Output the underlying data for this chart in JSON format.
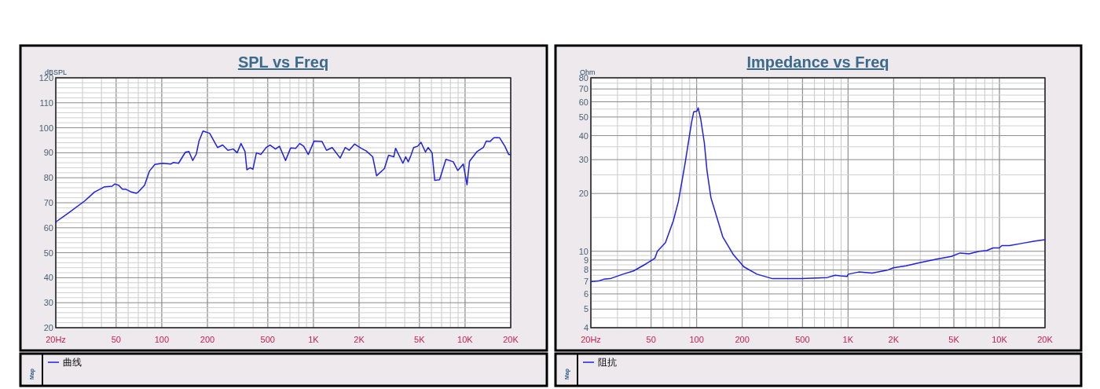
{
  "chart_data": [
    {
      "type": "line",
      "title": "SPL vs Freq",
      "ylabel": "dBSPL",
      "log": "x",
      "grid": true,
      "legend": "bottom",
      "annotations": [
        "Map"
      ],
      "xlim": [
        20,
        20000
      ],
      "ylim": [
        20,
        120
      ],
      "xticks": [
        {
          "value": 20,
          "label": "20Hz"
        },
        50,
        100,
        200,
        500,
        {
          "value": 1000,
          "label": "1K"
        },
        {
          "value": 2000,
          "label": "2K"
        },
        {
          "value": 5000,
          "label": "5K"
        },
        {
          "value": 10000,
          "label": "10K"
        },
        {
          "value": 20000,
          "label": "20K"
        }
      ],
      "yticks": [
        20,
        30,
        40,
        50,
        60,
        70,
        80,
        90,
        100,
        110,
        120
      ],
      "x": [
        20,
        24,
        31,
        36,
        42,
        47,
        49,
        52,
        55,
        58,
        63,
        68,
        70,
        77,
        83,
        90,
        101,
        115,
        119,
        129,
        143,
        151,
        160,
        169,
        176,
        187,
        207,
        233,
        252,
        273,
        296,
        314,
        333,
        354,
        364,
        383,
        399,
        421,
        450,
        488,
        518,
        562,
        597,
        655,
        707,
        764,
        812,
        863,
        925,
        1010,
        1140,
        1220,
        1330,
        1500,
        1620,
        1720,
        1870,
        2060,
        2230,
        2460,
        2610,
        2940,
        3130,
        3390,
        3480,
        3890,
        4060,
        4220,
        4400,
        4580,
        4860,
        5120,
        5480,
        5710,
        6060,
        6310,
        6790,
        7480,
        8360,
        8950,
        9730,
        10300,
        10700,
        12000,
        13200,
        13800,
        14600,
        15500,
        16900,
        18300,
        19400,
        20000
      ],
      "series": [
        {
          "name": "曲线",
          "color": "#1f1fe6",
          "values": [
            62.3,
            65.7,
            70.7,
            74.3,
            76.4,
            76.6,
            77.5,
            77,
            75.4,
            75.4,
            74.3,
            73.8,
            74.3,
            77,
            82.7,
            85.3,
            85.8,
            85.5,
            86.1,
            85.8,
            90.2,
            90.5,
            86.9,
            89.5,
            94.7,
            98.7,
            97.8,
            92.1,
            93.1,
            91,
            91.5,
            90,
            93.7,
            90.5,
            83.2,
            84,
            83.4,
            90,
            89.3,
            92.1,
            93.1,
            91.5,
            92.6,
            86.9,
            91.9,
            91.8,
            93.7,
            92.6,
            89.3,
            94.7,
            94.5,
            91,
            92.1,
            87.9,
            92.1,
            91,
            93.5,
            91.8,
            90.7,
            88.4,
            80.8,
            83.7,
            89,
            88.4,
            91.8,
            85.8,
            88.4,
            86.4,
            89,
            92.1,
            92.6,
            94.2,
            90.3,
            92.1,
            90,
            79,
            79.2,
            87.4,
            86.4,
            82.9,
            85.5,
            77.2,
            86.6,
            90.5,
            92.1,
            94.7,
            94.5,
            96,
            96,
            92.6,
            89.3,
            89.3
          ]
        }
      ]
    },
    {
      "type": "line",
      "title": "Impedance vs Freq",
      "ylabel": "Ohm",
      "log": "xy",
      "grid": true,
      "legend": "bottom",
      "annotations": [
        "Map"
      ],
      "xlim": [
        20,
        20000
      ],
      "ylim": [
        4,
        80
      ],
      "xticks": [
        {
          "value": 20,
          "label": "20Hz"
        },
        50,
        100,
        200,
        500,
        {
          "value": 1000,
          "label": "1K"
        },
        {
          "value": 2000,
          "label": "2K"
        },
        {
          "value": 5000,
          "label": "5K"
        },
        {
          "value": 10000,
          "label": "10K"
        },
        {
          "value": 20000,
          "label": "20K"
        }
      ],
      "yticks": [
        4,
        5,
        6,
        7,
        8,
        9,
        10,
        20,
        30,
        40,
        50,
        60,
        70,
        80
      ],
      "x": [
        20,
        22.5,
        24.3,
        26.8,
        32.6,
        38.3,
        46.3,
        53,
        55,
        62.2,
        70.1,
        75.8,
        83.8,
        92.5,
        95.6,
        100.3,
        102.3,
        106.3,
        112.4,
        117,
        124.2,
        148.7,
        174.8,
        205,
        250,
        317,
        387,
        491,
        729,
        822,
        888,
        986,
        1004,
        1177,
        1444,
        1842,
        1994,
        2417,
        2935,
        3845,
        4823,
        5500,
        6300,
        7362,
        8253,
        9081,
        9978,
        10375,
        11660,
        14140,
        17160,
        20000
      ],
      "series": [
        {
          "name": "阻抗",
          "color": "#1f1fe6",
          "values": [
            6.95,
            7,
            7.15,
            7.2,
            7.6,
            7.9,
            8.6,
            9.2,
            10,
            11.1,
            14.4,
            18.2,
            28.6,
            46.8,
            53.2,
            53.6,
            55.8,
            48.9,
            36.6,
            26.3,
            19,
            11.9,
            9.6,
            8.3,
            7.6,
            7.2,
            7.2,
            7.2,
            7.3,
            7.5,
            7.45,
            7.4,
            7.6,
            7.8,
            7.7,
            8,
            8.2,
            8.4,
            8.7,
            9.1,
            9.4,
            9.8,
            9.7,
            10,
            10.1,
            10.4,
            10.4,
            10.7,
            10.7,
            11,
            11.3,
            11.5
          ]
        }
      ]
    }
  ]
}
